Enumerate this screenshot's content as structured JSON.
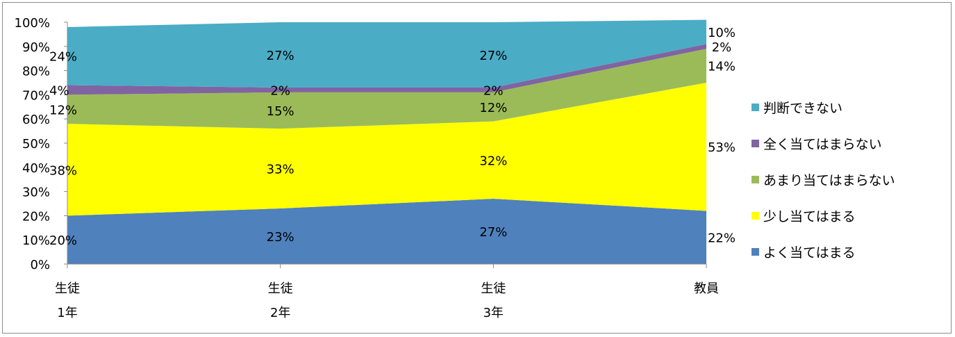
{
  "chart_data": {
    "type": "area",
    "stacked": "percent",
    "categories": [
      [
        "生徒",
        "1年"
      ],
      [
        "生徒",
        "2年"
      ],
      [
        "生徒",
        "3年"
      ],
      [
        "教員"
      ]
    ],
    "ylim": [
      0,
      100
    ],
    "y_ticks": [
      "0%",
      "10%",
      "20%",
      "30%",
      "40%",
      "50%",
      "60%",
      "70%",
      "80%",
      "90%",
      "100%"
    ],
    "legend_position": "right",
    "series": [
      {
        "name": "よく当てはまる",
        "color": "#4f81bd",
        "values": [
          20,
          23,
          27,
          22
        ],
        "labels": [
          "20%",
          "23%",
          "27%",
          "22%"
        ]
      },
      {
        "name": "少し当てはまる",
        "color": "#ffff00",
        "values": [
          38,
          33,
          32,
          53
        ],
        "labels": [
          "38%",
          "33%",
          "32%",
          "53%"
        ]
      },
      {
        "name": "あまり当てはまらない",
        "color": "#9bbb59",
        "values": [
          12,
          15,
          12,
          14
        ],
        "labels": [
          "12%",
          "15%",
          "12%",
          "14%"
        ]
      },
      {
        "name": "全く当てはまらない",
        "color": "#8064a2",
        "values": [
          4,
          2,
          2,
          2
        ],
        "labels": [
          "4%",
          "2%",
          "2%",
          "2%"
        ]
      },
      {
        "name": "判断できない",
        "color": "#4bacc6",
        "values": [
          24,
          27,
          27,
          10
        ],
        "labels": [
          "24%",
          "27%",
          "27%",
          "10%"
        ]
      }
    ]
  }
}
